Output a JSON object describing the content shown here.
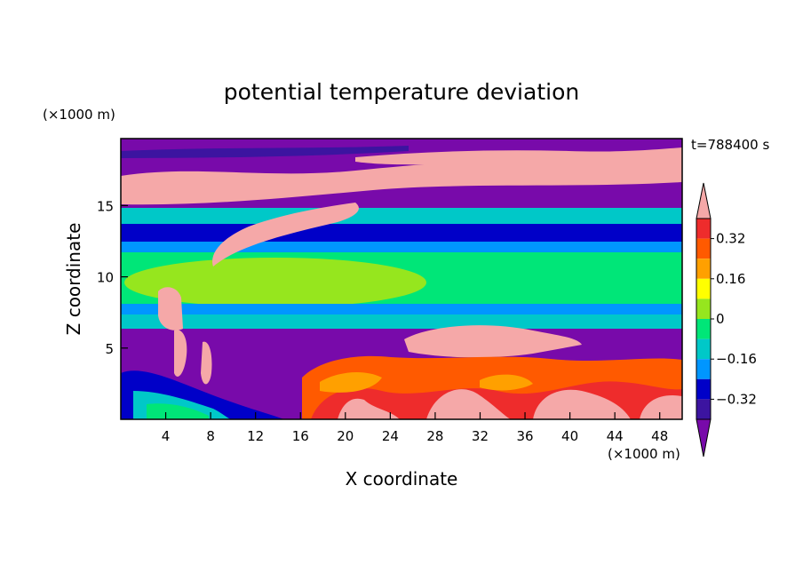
{
  "chart_data": {
    "type": "heatmap",
    "title": "potential temperature deviation",
    "xlabel": "X coordinate",
    "ylabel": "Z coordinate",
    "x_unit": "(×1000 m)",
    "y_unit": "(×1000 m)",
    "time_label": "t=788400 s",
    "xlim": [
      0,
      50
    ],
    "ylim": [
      0,
      19.7
    ],
    "x_ticks": [
      "4",
      "8",
      "12",
      "16",
      "20",
      "24",
      "28",
      "32",
      "36",
      "40",
      "44",
      "48"
    ],
    "y_ticks": [
      "5",
      "10",
      "15"
    ],
    "colorbar": {
      "levels": [
        -0.4,
        -0.32,
        -0.24,
        -0.16,
        -0.08,
        0,
        0.08,
        0.16,
        0.24,
        0.32,
        0.4
      ],
      "tick_labels": [
        "0.32",
        "0.16",
        "0",
        "−0.16",
        "−0.32"
      ],
      "colors_top_to_bottom": [
        "#f5a8a8",
        "#ee2c2c",
        "#ff5a00",
        "#ffa000",
        "#ffff00",
        "#96e61e",
        "#00e678",
        "#00c8c8",
        "#0096ff",
        "#0000c8",
        "#3c14a0",
        "#780aaa"
      ],
      "extend": "both"
    },
    "layers": [
      {
        "z_range": [
          17.5,
          19.7
        ],
        "dominant": "violet",
        "values": -0.45
      },
      {
        "z_range": [
          16.0,
          17.5
        ],
        "dominant": "pink",
        "values": 0.45
      },
      {
        "z_range": [
          14.5,
          16.0
        ],
        "dominant": "cyan",
        "values": -0.12
      },
      {
        "z_range": [
          13.0,
          14.5
        ],
        "dominant": "dark blue",
        "values": -0.3
      },
      {
        "z_range": [
          8.5,
          13.0
        ],
        "dominant": "green",
        "values": -0.05
      },
      {
        "z_range": [
          7.0,
          8.5
        ],
        "dominant": "blue",
        "values": -0.2
      },
      {
        "z_range": [
          5.0,
          7.0
        ],
        "dominant": "violet",
        "values": -0.4
      },
      {
        "z_range": [
          0.0,
          5.0
        ],
        "dominant": "pink/red (x>16)",
        "values": 0.4
      }
    ]
  }
}
